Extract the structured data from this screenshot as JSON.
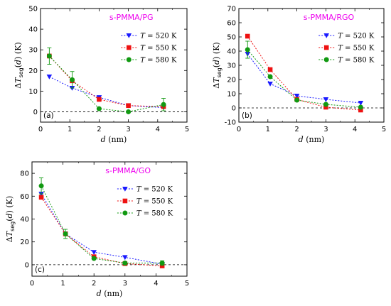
{
  "colors": {
    "blue": "#1a1aff",
    "red": "#ee1111",
    "green": "#119911",
    "title": "#ee00ee"
  },
  "chart_data": [
    {
      "type": "line",
      "panel": "(a)",
      "title": "s-PMMA/PG",
      "xlabel": "d (nm)",
      "ylabel": "ΔTseg(d) (K)",
      "xlim": [
        0,
        5
      ],
      "ylim": [
        -5,
        50
      ],
      "xticks": [
        0,
        1,
        2,
        3,
        4,
        5
      ],
      "yticks": [
        0,
        10,
        20,
        30,
        40,
        50
      ],
      "x": [
        0.3,
        1.08,
        2.0,
        3.0,
        4.2
      ],
      "legend_position": "top-right",
      "series": [
        {
          "name": "T = 520 K",
          "marker": "triangle-down",
          "color": "#1a1aff",
          "values": [
            17,
            11.5,
            7,
            3,
            2
          ]
        },
        {
          "name": "T = 550 K",
          "marker": "square",
          "color": "#ee1111",
          "values": [
            27,
            15,
            6,
            3,
            2.5
          ]
        },
        {
          "name": "T = 580 K",
          "marker": "circle",
          "color": "#119911",
          "values": [
            27,
            15.5,
            1.5,
            0,
            3.5
          ],
          "errors": [
            4,
            4,
            0,
            0,
            3
          ]
        }
      ]
    },
    {
      "type": "line",
      "panel": "(b)",
      "title": "s-PMMA/RGO",
      "xlabel": "d (nm)",
      "ylabel": "ΔTseg(d) (K)",
      "xlim": [
        0,
        5
      ],
      "ylim": [
        -10,
        70
      ],
      "xticks": [
        0,
        1,
        2,
        3,
        4,
        5
      ],
      "yticks": [
        -10,
        0,
        10,
        20,
        30,
        40,
        50,
        60,
        70
      ],
      "x": [
        0.3,
        1.08,
        2.0,
        3.0,
        4.2
      ],
      "legend_position": "top-right",
      "series": [
        {
          "name": "T = 520 K",
          "marker": "triangle-down",
          "color": "#1a1aff",
          "values": [
            38,
            17,
            8.5,
            6,
            3.5
          ]
        },
        {
          "name": "T = 550 K",
          "marker": "square",
          "color": "#ee1111",
          "values": [
            50.5,
            27,
            6,
            0.5,
            -1.5
          ]
        },
        {
          "name": "T = 580 K",
          "marker": "circle",
          "color": "#119911",
          "values": [
            41,
            22,
            5.5,
            2.5,
            0.5
          ],
          "errors": [
            6,
            0,
            0,
            0,
            0
          ]
        }
      ]
    },
    {
      "type": "line",
      "panel": "(c)",
      "title": "s-PMMA/GO",
      "xlabel": "d (nm)",
      "ylabel": "ΔTseg(d) (K)",
      "xlim": [
        0,
        5
      ],
      "ylim": [
        -10,
        90
      ],
      "xticks": [
        0,
        1,
        2,
        3,
        4,
        5
      ],
      "yticks": [
        0,
        20,
        40,
        60,
        80
      ],
      "x": [
        0.3,
        1.08,
        2.0,
        3.0,
        4.2
      ],
      "legend_position": "top-right",
      "series": [
        {
          "name": "T = 520 K",
          "marker": "triangle-down",
          "color": "#1a1aff",
          "values": [
            62,
            27,
            11,
            6.5,
            0.5
          ]
        },
        {
          "name": "T = 550 K",
          "marker": "square",
          "color": "#ee1111",
          "values": [
            59,
            27,
            7,
            1,
            -1
          ]
        },
        {
          "name": "T = 580 K",
          "marker": "circle",
          "color": "#119911",
          "values": [
            69,
            27,
            5.5,
            1.5,
            1.5
          ],
          "errors": [
            7,
            4,
            0,
            0,
            2
          ]
        }
      ]
    }
  ]
}
